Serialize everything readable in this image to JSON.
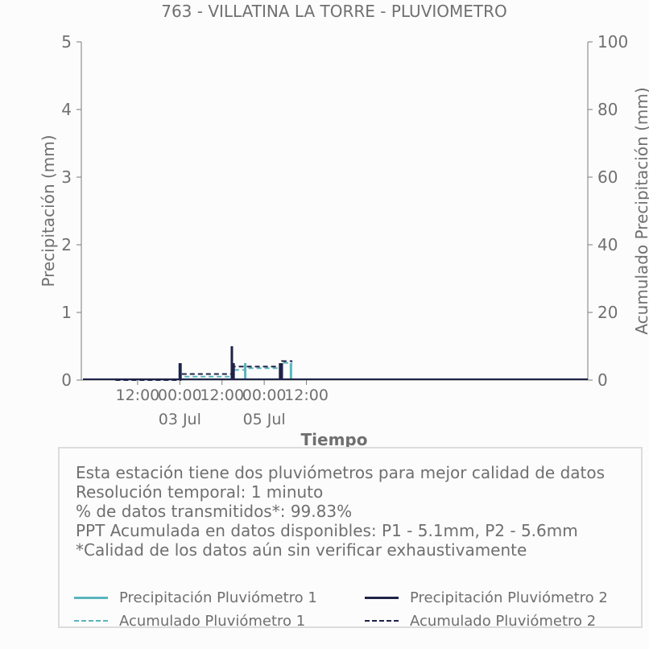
{
  "chart_data": {
    "type": "line",
    "title": "763 - VILLATINA LA TORRE - PLUVIOMETRO",
    "xlabel": "Tiempo",
    "ylabel": "Precipitación (mm)",
    "ylabel_right": "Acumulado Precipitación (mm)",
    "xlim": [
      -16,
      128
    ],
    "ylim": [
      0,
      5
    ],
    "ylim_right": [
      0,
      100
    ],
    "yticks": [
      0,
      1,
      2,
      3,
      4,
      5
    ],
    "yticks_right": [
      0,
      20,
      40,
      60,
      80,
      100
    ],
    "xticks": [
      {
        "x": 0,
        "label": "12:00",
        "sublabel": ""
      },
      {
        "x": 12,
        "label": "00:00",
        "sublabel": "03 Jul"
      },
      {
        "x": 24,
        "label": "12:00",
        "sublabel": ""
      },
      {
        "x": 36,
        "label": "00:00",
        "sublabel": "05 Jul"
      },
      {
        "x": 48,
        "label": "12:00",
        "sublabel": ""
      }
    ],
    "grid": false,
    "legend_position": "bottom",
    "series": [
      {
        "name": "Precipitación Pluviómetro 1",
        "axis": "left",
        "style": "solid",
        "color": "#5ab4bd",
        "x": [
          12.0,
          12.1,
          27.0,
          27.25,
          30.6,
          40.6,
          41.0,
          43.6
        ],
        "y": [
          0.25,
          0.25,
          0.25,
          0.25,
          0.25,
          0.25,
          0.25,
          0.25
        ]
      },
      {
        "name": "Acumulado Pluviómetro 1",
        "axis": "right",
        "style": "dashed",
        "color": "#5ab4bd",
        "x": [
          -6.3,
          12.0,
          12.1,
          27.0,
          27.25,
          30.6,
          40.6,
          41.0,
          44.0
        ],
        "y": [
          0.0,
          0.0,
          1.0,
          1.0,
          3.0,
          3.5,
          3.5,
          5.1,
          5.1
        ]
      },
      {
        "name": "Precipitación Pluviómetro 2",
        "axis": "left",
        "style": "solid",
        "color": "#1e2348",
        "x": [
          12.0,
          12.1,
          12.2,
          26.8,
          27.3,
          40.5,
          41.0
        ],
        "y": [
          0.25,
          0.25,
          0.25,
          0.5,
          0.25,
          0.25,
          0.25
        ]
      },
      {
        "name": "Acumulado Pluviómetro 2",
        "axis": "right",
        "style": "dashed",
        "color": "#1e2348",
        "x": [
          -6.3,
          12.0,
          12.2,
          26.8,
          27.3,
          40.5,
          41.0,
          44.0
        ],
        "y": [
          0.0,
          0.0,
          1.8,
          1.8,
          4.0,
          4.0,
          5.6,
          5.6
        ]
      }
    ]
  },
  "info": {
    "lines": [
      "Esta estación tiene dos pluviómetros para mejor calidad de datos",
      "Resolución temporal: 1 minuto",
      "% de datos transmitidos*: 99.83%",
      "PPT Acumulada en datos disponibles: P1 - 5.1mm, P2 - 5.6mm",
      "*Calidad de los datos aún sin verificar exhaustivamente"
    ]
  },
  "legend": {
    "items": [
      {
        "label": "Precipitación Pluviómetro 1",
        "color": "#5ab4bd",
        "style": "solid"
      },
      {
        "label": "Precipitación Pluviómetro 2",
        "color": "#1e2348",
        "style": "solid"
      },
      {
        "label": "Acumulado Pluviómetro 1",
        "color": "#5ab4bd",
        "style": "dashed"
      },
      {
        "label": "Acumulado Pluviómetro 2",
        "color": "#1e2348",
        "style": "dashed"
      }
    ]
  }
}
